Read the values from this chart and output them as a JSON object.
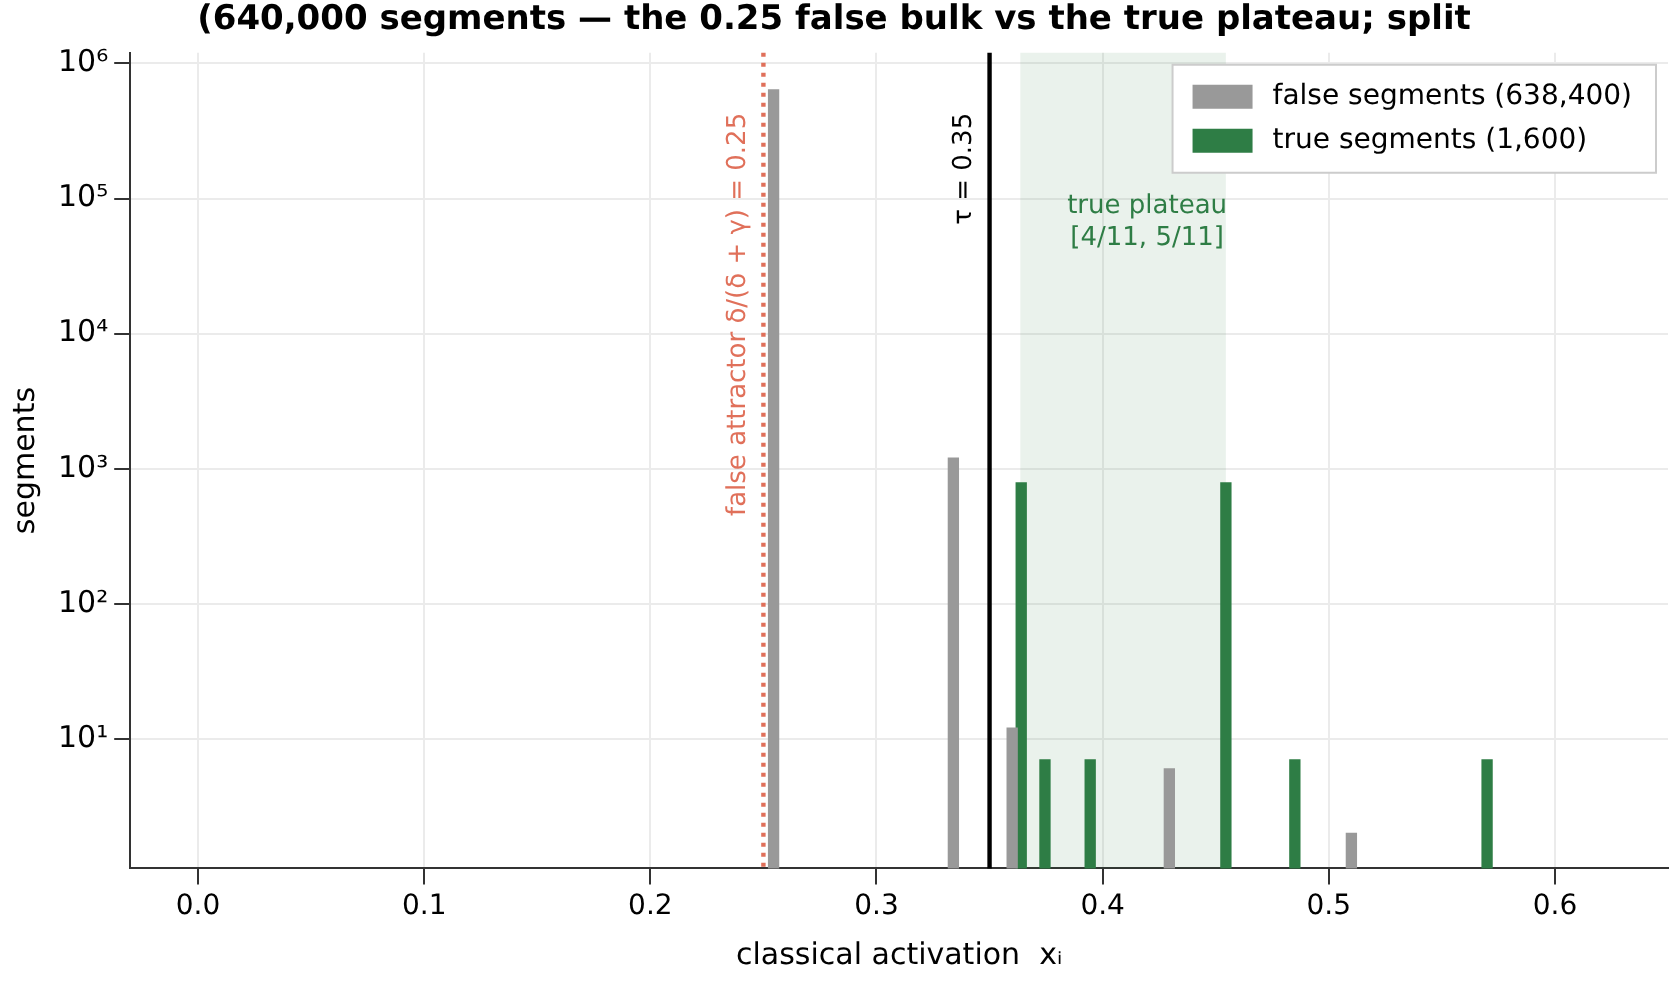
{
  "chart_data": {
    "type": "bar",
    "title": "(640,000 segments — the 0.25 false bulk vs the true plateau; split",
    "xlabel": "classical activation  xᵢ",
    "ylabel": "segments",
    "series": [
      {
        "name": "false segments (638,400)",
        "color": "#999999",
        "x": [
          0.2545,
          0.334,
          0.36,
          0.4295,
          0.51
        ],
        "values": [
          637000,
          1200,
          12,
          6,
          2
        ]
      },
      {
        "name": "true segments (1,600)",
        "color": "#2e7d45",
        "x": [
          0.364,
          0.3745,
          0.3945,
          0.4545,
          0.485,
          0.57
        ],
        "values": [
          786,
          7,
          7,
          786,
          7,
          7
        ]
      }
    ],
    "xlim": [
      -0.03,
      0.65
    ],
    "xticks": [
      {
        "value": 0,
        "label": "0.0"
      },
      {
        "value": 0.1,
        "label": "0.1"
      },
      {
        "value": 0.2,
        "label": "0.2"
      },
      {
        "value": 0.3,
        "label": "0.3"
      },
      {
        "value": 0.4,
        "label": "0.4"
      },
      {
        "value": 0.5,
        "label": "0.5"
      },
      {
        "value": 0.6,
        "label": "0.6"
      }
    ],
    "ylim": [
      1.1,
      1200000
    ],
    "yticks": [
      {
        "value": 10,
        "label": "10¹"
      },
      {
        "value": 100,
        "label": "10²"
      },
      {
        "value": 1000,
        "label": "10³"
      },
      {
        "value": 10000,
        "label": "10⁴"
      },
      {
        "value": 100000,
        "label": "10⁵"
      },
      {
        "value": 1000000,
        "label": "10⁶"
      }
    ],
    "log": "y",
    "grid": true,
    "legend": "top right",
    "ref_lines": [
      {
        "axis": "x",
        "value": 0.25,
        "label": "false attractor δ/(δ + γ) = 0.25",
        "color": "#e0705a",
        "line_style": "dotted"
      },
      {
        "axis": "x",
        "value": 0.35,
        "label": "τ = 0.35",
        "color": "#000000",
        "line_style": "solid"
      }
    ],
    "bands": [
      {
        "axis": "x",
        "from": 0.3636,
        "to": 0.4545,
        "label": "true plateau [4/11, 5/11]",
        "color": "#2e7d45"
      }
    ]
  }
}
